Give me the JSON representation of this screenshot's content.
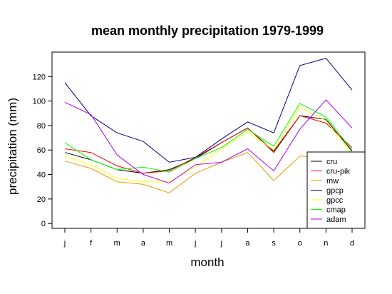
{
  "chart_data": {
    "type": "line",
    "title": "mean monthly precipitation 1979-1999",
    "xlabel": "month",
    "ylabel": "precipitation (mm)",
    "categories": [
      "j",
      "f",
      "m",
      "a",
      "m",
      "j",
      "j",
      "a",
      "s",
      "o",
      "n",
      "d"
    ],
    "ylim": [
      -4,
      140
    ],
    "yticks": [
      0,
      20,
      40,
      60,
      80,
      100,
      120
    ],
    "grid": false,
    "legend_position": "bottom-right",
    "series": [
      {
        "name": "cru",
        "color": "#000000",
        "values": [
          58,
          52,
          44,
          41,
          44,
          53,
          66,
          78,
          59,
          88,
          85,
          59
        ]
      },
      {
        "name": "cru-pik",
        "color": "#ff0000",
        "values": [
          61,
          58,
          47,
          41,
          43,
          54,
          66,
          78,
          58,
          88,
          82,
          62
        ]
      },
      {
        "name": "mw",
        "color": "#e89a00",
        "values": [
          51,
          45,
          34,
          32,
          25,
          41,
          50,
          58,
          35,
          55,
          54,
          48
        ]
      },
      {
        "name": "gpcp",
        "color": "#000080",
        "values": [
          115,
          88,
          74,
          67,
          50,
          54,
          69,
          83,
          74,
          129,
          135,
          109
        ]
      },
      {
        "name": "gpcc",
        "color": "#ffff00",
        "values": [
          55,
          48,
          37,
          34,
          34,
          46,
          61,
          75,
          60,
          95,
          84,
          56
        ]
      },
      {
        "name": "cmap",
        "color": "#00ff00",
        "values": [
          66,
          52,
          44,
          46,
          42,
          53,
          62,
          77,
          63,
          98,
          87,
          60
        ]
      },
      {
        "name": "adam",
        "color": "#aa00ff",
        "values": [
          99,
          89,
          56,
          40,
          33,
          48,
          50,
          61,
          43,
          77,
          101,
          78
        ]
      }
    ]
  }
}
